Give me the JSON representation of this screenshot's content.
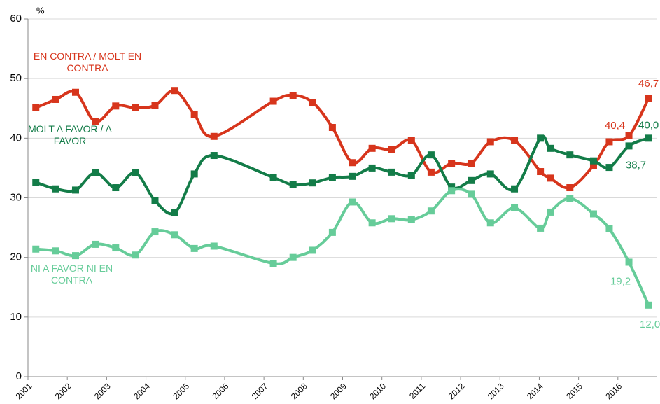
{
  "chart_data": {
    "type": "line",
    "y_label": "%",
    "xlim": [
      2001,
      2017
    ],
    "ylim": [
      0,
      60
    ],
    "xticks": [
      2001,
      2002,
      2003,
      2004,
      2005,
      2006,
      2007,
      2008,
      2009,
      2010,
      2011,
      2012,
      2013,
      2014,
      2015,
      2016
    ],
    "yticks": [
      0,
      10,
      20,
      30,
      40,
      50,
      60
    ],
    "grid": true,
    "x": [
      2001.2,
      2001.71,
      2002.21,
      2002.71,
      2003.23,
      2003.73,
      2004.23,
      2004.73,
      2005.23,
      2005.73,
      2007.24,
      2007.74,
      2008.24,
      2008.74,
      2009.25,
      2009.75,
      2010.25,
      2010.75,
      2011.25,
      2011.77,
      2012.27,
      2012.76,
      2013.37,
      2014.03,
      2014.28,
      2014.78,
      2015.38,
      2015.78,
      2016.28,
      2016.78
    ],
    "series": [
      {
        "name": "EN CONTRA / MOLT EN CONTRA",
        "color": "#d7351c",
        "values": [
          45.1,
          46.5,
          47.7,
          42.8,
          45.4,
          45.1,
          45.5,
          48.0,
          44.0,
          40.3,
          46.2,
          47.2,
          46.0,
          41.8,
          35.9,
          38.3,
          38.1,
          39.6,
          34.3,
          35.8,
          35.8,
          39.4,
          39.6,
          34.4,
          33.3,
          31.7,
          35.4,
          39.4,
          40.4,
          46.7
        ],
        "value_labels": [
          null,
          null,
          null,
          null,
          null,
          null,
          null,
          null,
          null,
          null,
          null,
          null,
          null,
          null,
          null,
          null,
          null,
          null,
          null,
          null,
          null,
          null,
          null,
          null,
          null,
          null,
          null,
          null,
          "40,4",
          "46,7"
        ]
      },
      {
        "name": "MOLT A FAVOR / A FAVOR",
        "color": "#137c48",
        "values": [
          32.6,
          31.5,
          31.3,
          34.2,
          31.7,
          34.2,
          29.5,
          27.5,
          34.0,
          37.1,
          33.4,
          32.2,
          32.5,
          33.4,
          33.6,
          35.0,
          34.3,
          33.8,
          37.2,
          31.8,
          32.9,
          34.0,
          31.5,
          40.0,
          38.3,
          37.2,
          36.2,
          35.1,
          38.7,
          40.0
        ],
        "value_labels": [
          null,
          null,
          null,
          null,
          null,
          null,
          null,
          null,
          null,
          null,
          null,
          null,
          null,
          null,
          null,
          null,
          null,
          null,
          null,
          null,
          null,
          null,
          null,
          null,
          null,
          null,
          null,
          null,
          "38,7",
          "40,0"
        ]
      },
      {
        "name": "NI A FAVOR NI EN CONTRA",
        "color": "#66cc99",
        "values": [
          21.4,
          21.1,
          20.3,
          22.2,
          21.6,
          20.4,
          24.3,
          23.8,
          21.5,
          21.9,
          19.0,
          20.0,
          21.2,
          24.2,
          29.3,
          25.8,
          26.5,
          26.3,
          27.8,
          31.2,
          30.6,
          25.8,
          28.3,
          24.9,
          27.6,
          29.9,
          27.3,
          24.8,
          19.2,
          12.0
        ],
        "value_labels": [
          null,
          null,
          null,
          null,
          null,
          null,
          null,
          null,
          null,
          null,
          null,
          null,
          null,
          null,
          null,
          null,
          null,
          null,
          null,
          null,
          null,
          null,
          null,
          null,
          null,
          null,
          null,
          null,
          "19,2",
          "12,0"
        ]
      }
    ]
  }
}
